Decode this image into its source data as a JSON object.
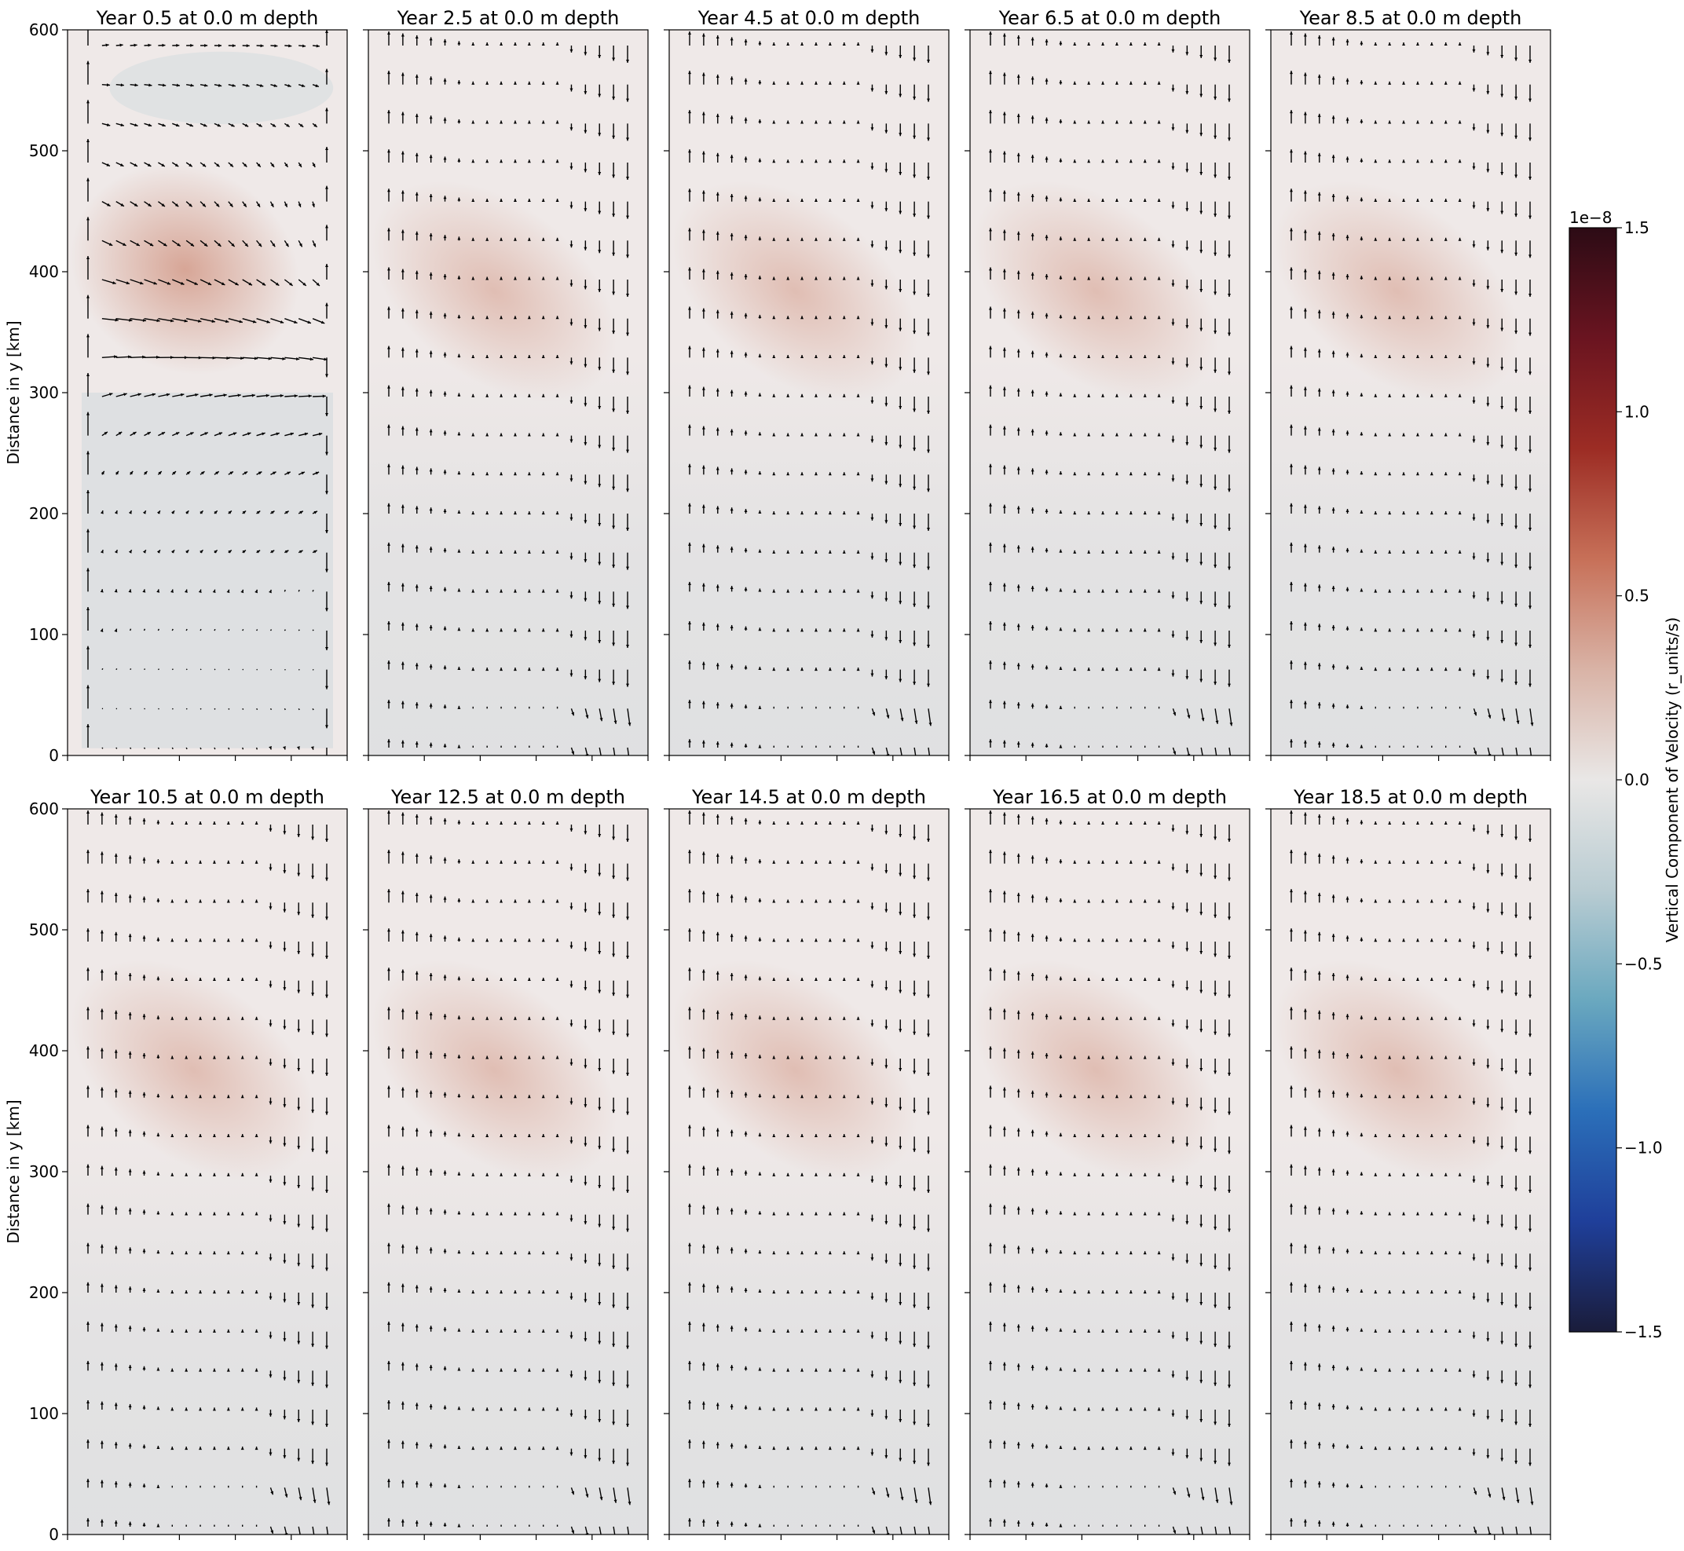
{
  "figure": {
    "ylabel": "Distance in y [km]",
    "colorbar": {
      "label": "Vertical Component of Velocity (r_units/s)",
      "exponent": "1e−8",
      "ticks": [
        1.5,
        1.0,
        0.5,
        0.0,
        -0.5,
        -1.0,
        -1.5
      ],
      "tick_labels": [
        "1.5",
        "1.0",
        "0.5",
        "0.0",
        "−0.5",
        "−1.0",
        "−1.5"
      ],
      "vmin": -1.5,
      "vmax": 1.5,
      "stops": [
        "#1a1c3a",
        "#1f3f9a",
        "#2b6fb9",
        "#6aa8bf",
        "#b9ccd2",
        "#e9e7e6",
        "#d9b3a6",
        "#c77058",
        "#9c2c24",
        "#6a1420",
        "#2c0b15"
      ]
    },
    "arrow_color": "#000000",
    "background_color": "#efe9e8"
  },
  "chart_data": [
    {
      "type": "heatmap",
      "title": "Year 0.5 at 0.0 m depth",
      "ylabel": "Distance in y [km]",
      "ylim": [
        0,
        600
      ],
      "yticks": [
        0,
        100,
        200,
        300,
        400,
        500,
        600
      ],
      "overlay": "quiver"
    },
    {
      "type": "heatmap",
      "title": "Year 2.5 at 0.0 m depth",
      "ylim": [
        0,
        600
      ],
      "overlay": "quiver"
    },
    {
      "type": "heatmap",
      "title": "Year 4.5 at 0.0 m depth",
      "ylim": [
        0,
        600
      ],
      "overlay": "quiver"
    },
    {
      "type": "heatmap",
      "title": "Year 6.5 at 0.0 m depth",
      "ylim": [
        0,
        600
      ],
      "overlay": "quiver"
    },
    {
      "type": "heatmap",
      "title": "Year 8.5 at 0.0 m depth",
      "ylim": [
        0,
        600
      ],
      "overlay": "quiver"
    },
    {
      "type": "heatmap",
      "title": "Year 10.5 at 0.0 m depth",
      "ylabel": "Distance in y [km]",
      "ylim": [
        0,
        600
      ],
      "yticks": [
        0,
        100,
        200,
        300,
        400,
        500,
        600
      ],
      "overlay": "quiver"
    },
    {
      "type": "heatmap",
      "title": "Year 12.5 at 0.0 m depth",
      "ylim": [
        0,
        600
      ],
      "overlay": "quiver"
    },
    {
      "type": "heatmap",
      "title": "Year 14.5 at 0.0 m depth",
      "ylim": [
        0,
        600
      ],
      "overlay": "quiver"
    },
    {
      "type": "heatmap",
      "title": "Year 16.5 at 0.0 m depth",
      "ylim": [
        0,
        600
      ],
      "overlay": "quiver"
    },
    {
      "type": "heatmap",
      "title": "Year 18.5 at 0.0 m depth",
      "ylim": [
        0,
        600
      ],
      "overlay": "quiver"
    }
  ]
}
